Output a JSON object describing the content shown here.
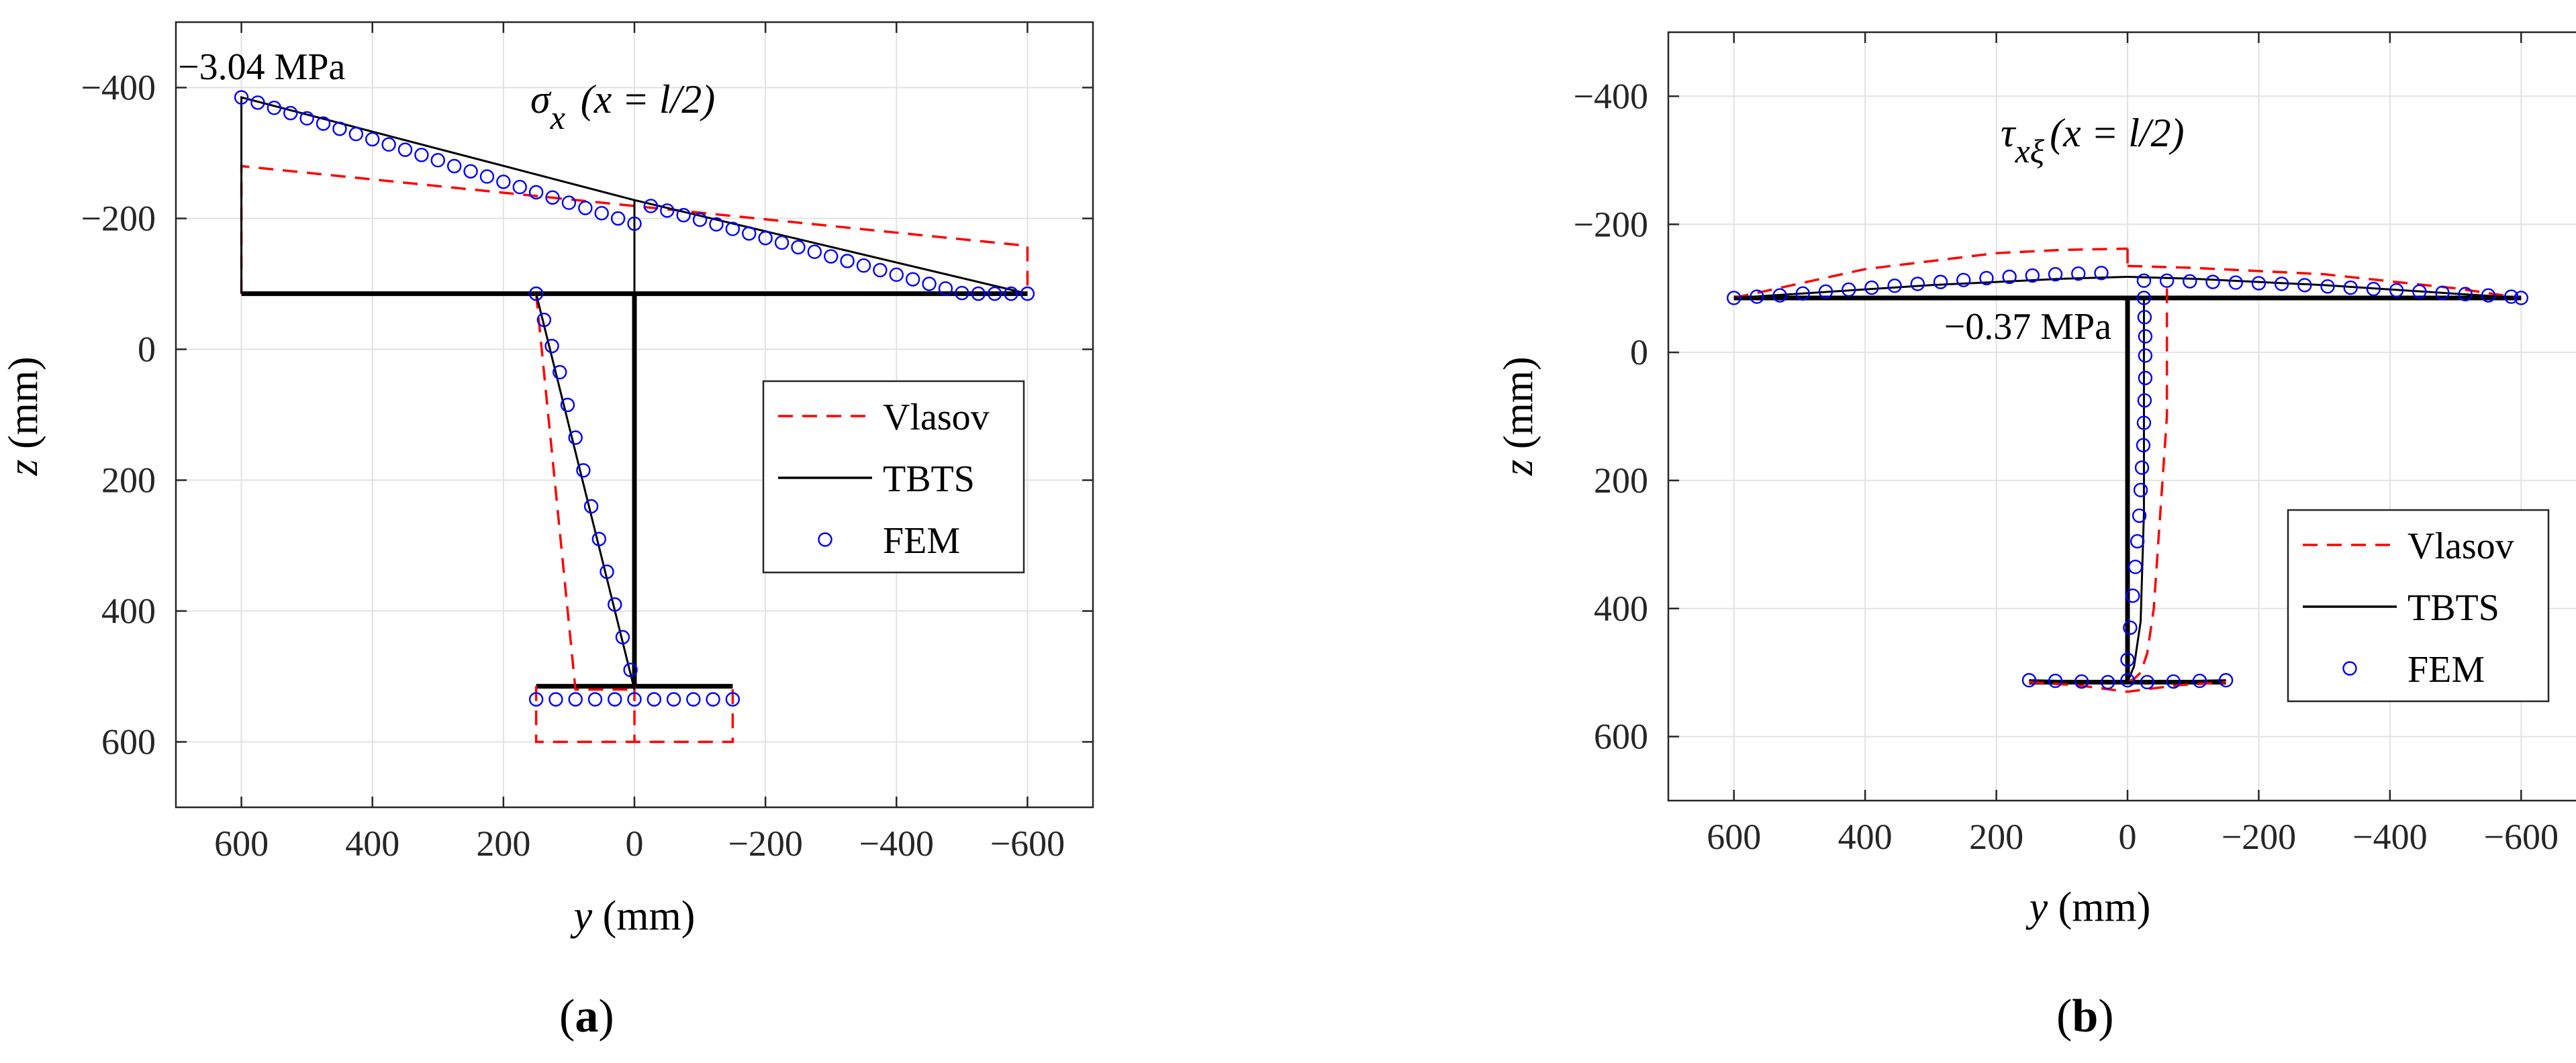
{
  "chart_data": [
    {
      "panel": "a",
      "type": "line",
      "title": "σx (x = l/2)",
      "title_symbol": "σ",
      "title_sub": "x",
      "title_rest": " (x = l/2)",
      "xlabel_var": "y",
      "xlabel_unit": " (mm)",
      "ylabel_var": "z",
      "ylabel_unit": " (mm)",
      "xlim": [
        700,
        -700
      ],
      "ylim": [
        700,
        -500
      ],
      "xticks": [
        600,
        400,
        200,
        0,
        -200,
        -400,
        -600
      ],
      "yticks": [
        -400,
        -200,
        0,
        200,
        400,
        600
      ],
      "grid": true,
      "legend_position": "right",
      "annotation": "−3.04 MPa",
      "section": [
        {
          "name": "top flange",
          "y": [
            600,
            -600
          ],
          "z": [
            -85,
            -85
          ]
        },
        {
          "name": "web",
          "y": [
            0,
            0
          ],
          "z": [
            -85,
            515
          ]
        },
        {
          "name": "bottom flange",
          "y": [
            150,
            -150
          ],
          "z": [
            515,
            515
          ]
        }
      ],
      "series": [
        {
          "name": "Vlasov",
          "style": "dashed",
          "color": "#ff0000",
          "segments": [
            {
              "y": [
                600,
                600,
                -600,
                -600
              ],
              "z": [
                -85,
                -280,
                -158,
                -85
              ]
            },
            {
              "y": [
                150,
                90,
                0
              ],
              "z": [
                -85,
                520,
                520
              ]
            },
            {
              "y": [
                150,
                150,
                -150,
                -150
              ],
              "z": [
                515,
                600,
                600,
                515
              ]
            },
            {
              "y": [
                0,
                0
              ],
              "z": [
                515,
                600
              ]
            }
          ]
        },
        {
          "name": "TBTS",
          "style": "solid",
          "color": "#000000",
          "segments": [
            {
              "y": [
                600,
                600,
                0,
                -600
              ],
              "z": [
                -85,
                -385,
                -228,
                -85
              ]
            },
            {
              "y": [
                0,
                0
              ],
              "z": [
                -85,
                -228
              ]
            },
            {
              "y": [
                150,
                0
              ],
              "z": [
                -85,
                520
              ]
            }
          ]
        },
        {
          "name": "FEM",
          "style": "markers",
          "color": "#0000ff",
          "segments": [
            {
              "y": [
                600,
                575,
                550,
                525,
                500,
                475,
                450,
                425,
                400,
                375,
                350,
                325,
                300,
                275,
                250,
                225,
                200,
                175,
                150,
                125,
                100,
                75,
                50,
                25,
                0,
                -25,
                -50,
                -75,
                -100,
                -125,
                -150,
                -175,
                -200,
                -225,
                -250,
                -275,
                -300,
                -325,
                -350,
                -375,
                -400,
                -425,
                -450,
                -475,
                -500,
                -525,
                -550,
                -575,
                -600
              ],
              "z": [
                -385,
                -377,
                -369,
                -361,
                -353,
                -345,
                -337,
                -329,
                -321,
                -313,
                -305,
                -297,
                -289,
                -280,
                -272,
                -264,
                -256,
                -248,
                -240,
                -232,
                -224,
                -216,
                -208,
                -200,
                -192,
                -219,
                -212,
                -205,
                -198,
                -191,
                -184,
                -177,
                -170,
                -163,
                -156,
                -149,
                -142,
                -135,
                -128,
                -121,
                -114,
                -107,
                -100,
                -93,
                -86,
                -85,
                -85,
                -85,
                -85
              ]
            },
            {
              "y": [
                150,
                138,
                126,
                114,
                102,
                90,
                78,
                66,
                54,
                42,
                30,
                18,
                6
              ],
              "z": [
                -85,
                -45,
                -5,
                35,
                85,
                135,
                185,
                240,
                290,
                340,
                390,
                440,
                490
              ]
            },
            {
              "y": [
                150,
                120,
                90,
                60,
                30,
                0,
                -30,
                -60,
                -90,
                -120,
                -150
              ],
              "z": [
                535,
                535,
                535,
                535,
                535,
                535,
                535,
                535,
                535,
                535,
                535
              ]
            }
          ]
        }
      ]
    },
    {
      "panel": "b",
      "type": "line",
      "title": "τxξ (x = l/2)",
      "title_symbol": "τ",
      "title_sub": "xξ",
      "title_rest": "(x = l/2)",
      "xlabel_var": "y",
      "xlabel_unit": " (mm)",
      "ylabel_var": "z",
      "ylabel_unit": " (mm)",
      "xlim": [
        700,
        -700
      ],
      "ylim": [
        700,
        -500
      ],
      "xticks": [
        600,
        400,
        200,
        0,
        -200,
        -400,
        -600
      ],
      "yticks": [
        -400,
        -200,
        0,
        200,
        400,
        600
      ],
      "grid": true,
      "legend_position": "lower-right",
      "annotation": "−0.37 MPa",
      "section": [
        {
          "name": "top flange",
          "y": [
            600,
            -600
          ],
          "z": [
            -85,
            -85
          ]
        },
        {
          "name": "web",
          "y": [
            0,
            0
          ],
          "z": [
            -85,
            515
          ]
        },
        {
          "name": "bottom flange",
          "y": [
            150,
            -150
          ],
          "z": [
            515,
            515
          ]
        }
      ],
      "series": [
        {
          "name": "Vlasov",
          "style": "dashed",
          "color": "#ff0000",
          "segments": [
            {
              "y": [
                600,
                400,
                200,
                100,
                0
              ],
              "z": [
                -85,
                -130,
                -155,
                -160,
                -162
              ]
            },
            {
              "y": [
                0,
                -100,
                -300,
                -500,
                -600
              ],
              "z": [
                -135,
                -132,
                -122,
                -100,
                -85
              ]
            },
            {
              "y": [
                -60,
                -60,
                -50,
                -40,
                -30,
                -20,
                -10,
                0
              ],
              "z": [
                -100,
                100,
                250,
                400,
                470,
                500,
                510,
                515
              ]
            },
            {
              "y": [
                150,
                75,
                0,
                -75,
                -150
              ],
              "z": [
                515,
                520,
                530,
                520,
                515
              ]
            },
            {
              "y": [
                0,
                0
              ],
              "z": [
                -162,
                -135
              ]
            }
          ]
        },
        {
          "name": "TBTS",
          "style": "solid",
          "color": "#000000",
          "segments": [
            {
              "y": [
                600,
                300,
                100,
                0
              ],
              "z": [
                -85,
                -105,
                -115,
                -118
              ]
            },
            {
              "y": [
                0,
                -100,
                -300,
                -600
              ],
              "z": [
                -118,
                -115,
                -105,
                -85
              ]
            },
            {
              "y": [
                -25,
                -25,
                -20,
                -10,
                0
              ],
              "z": [
                -85,
                250,
                420,
                490,
                515
              ]
            },
            {
              "y": [
                150,
                0,
                -150
              ],
              "z": [
                512,
                515,
                512
              ]
            }
          ]
        },
        {
          "name": "FEM",
          "style": "markers",
          "color": "#0000ff",
          "segments": [
            {
              "y": [
                600,
                565,
                530,
                495,
                460,
                425,
                390,
                355,
                320,
                285,
                250,
                215,
                180,
                145,
                110,
                75,
                40
              ],
              "z": [
                -85,
                -87,
                -89,
                -92,
                -95,
                -98,
                -101,
                -104,
                -107,
                -110,
                -113,
                -116,
                -118,
                -120,
                -122,
                -123,
                -124
              ]
            },
            {
              "y": [
                -25,
                -60,
                -95,
                -130,
                -165,
                -200,
                -235,
                -270,
                -305,
                -340,
                -375,
                -410,
                -445,
                -480,
                -515,
                -550,
                -585,
                -600
              ],
              "z": [
                -112,
                -112,
                -111,
                -110,
                -109,
                -108,
                -107,
                -105,
                -103,
                -101,
                -99,
                -97,
                -95,
                -93,
                -91,
                -89,
                -87,
                -85
              ]
            },
            {
              "y": [
                -25,
                -26,
                -27,
                -27,
                -27,
                -26,
                -25,
                -24,
                -22,
                -20,
                -18,
                -15,
                -12,
                -8,
                -4,
                0
              ],
              "z": [
                -85,
                -55,
                -25,
                5,
                40,
                75,
                110,
                145,
                180,
                215,
                255,
                295,
                335,
                380,
                430,
                480
              ]
            },
            {
              "y": [
                150,
                110,
                70,
                30,
                0,
                -30,
                -70,
                -110,
                -150
              ],
              "z": [
                512,
                513,
                514,
                515,
                512,
                515,
                514,
                513,
                512
              ]
            }
          ]
        }
      ]
    }
  ],
  "panel_labels": [
    "a",
    "b"
  ]
}
